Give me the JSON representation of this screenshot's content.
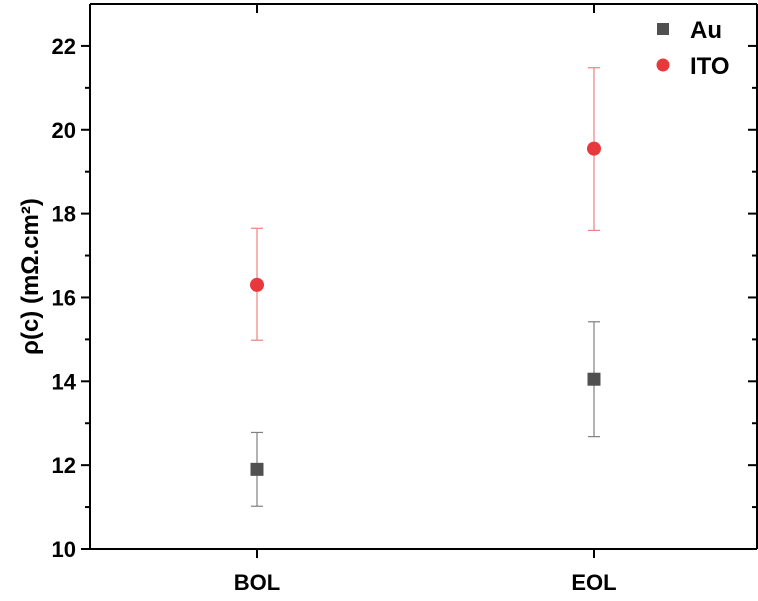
{
  "chart_data": {
    "type": "scatter",
    "categories": [
      "BOL",
      "EOL"
    ],
    "ylabel": "ρ(c) (mΩ.cm²)",
    "xlabel": "",
    "ylim": [
      10,
      23
    ],
    "yticks": [
      10,
      12,
      14,
      16,
      18,
      20,
      22
    ],
    "grid": false,
    "legend_position": "top-right",
    "error_bars": true,
    "series": [
      {
        "name": "Au",
        "marker": "square",
        "color": "#505050",
        "errorbar_color": "#808080",
        "values": [
          11.9,
          14.05
        ],
        "err_low": [
          11.02,
          12.68
        ],
        "err_high": [
          12.78,
          15.42
        ]
      },
      {
        "name": "ITO",
        "marker": "circle",
        "color": "#e8383c",
        "errorbar_color": "#f08080",
        "values": [
          16.3,
          19.55
        ],
        "err_low": [
          14.98,
          17.6
        ],
        "err_high": [
          17.65,
          21.48
        ]
      }
    ]
  }
}
